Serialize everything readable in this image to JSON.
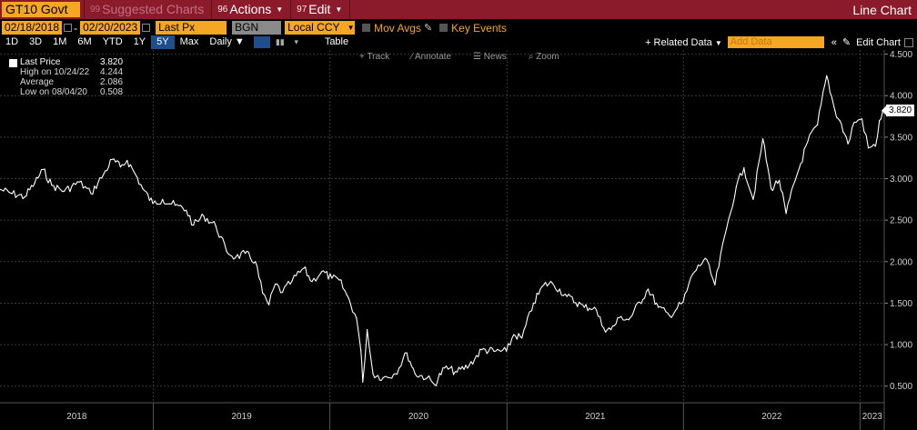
{
  "toolbar": {
    "ticker": "GT10 Govt",
    "suggested_num": "99",
    "suggested": "Suggested Charts",
    "actions_num": "96",
    "actions": "Actions",
    "edit_num": "97",
    "edit": "Edit",
    "title": "Line Chart"
  },
  "controls": {
    "start_date": "02/18/2018",
    "date_sep": "-",
    "end_date": "02/20/2023",
    "field": "Last Px",
    "source": "BGN",
    "currency": "Local CCY",
    "mov_avgs": "Mov Avgs",
    "key_events": "Key Events"
  },
  "ranges": [
    "1D",
    "3D",
    "1M",
    "6M",
    "YTD",
    "1Y",
    "5Y",
    "Max"
  ],
  "active_range": "5Y",
  "periodicity": "Daily",
  "table_label": "Table",
  "related_data": "+ Related Data",
  "add_data_placeholder": "Add Data",
  "edit_chart": "Edit Chart",
  "hover_tools": [
    "Track",
    "Annotate",
    "News",
    "Zoom"
  ],
  "legend": [
    {
      "label": "Last Price",
      "value": "3.820"
    },
    {
      "label": "High on 10/24/22",
      "value": "4.244"
    },
    {
      "label": "Average",
      "value": "2.086"
    },
    {
      "label": "Low on 08/04/20",
      "value": "0.508"
    }
  ],
  "colors": {
    "bar": "#8b1a2b",
    "accent": "#f5a623",
    "line": "#ffffff",
    "active": "#1f4e8c"
  },
  "chart_data": {
    "type": "line",
    "x_start": "2018-02-18",
    "x_end": "2023-02-20",
    "ylim": [
      0.3,
      4.55
    ],
    "y_ticks": [
      "4.500",
      "4.000",
      "3.500",
      "3.000",
      "2.500",
      "2.000",
      "1.500",
      "1.000",
      "0.500"
    ],
    "x_labels": [
      "2018",
      "2019",
      "2020",
      "2021",
      "2022",
      "2023"
    ],
    "last_value": "3.820",
    "series": [
      {
        "values": [
          [
            "2018-02-18",
            2.87
          ],
          [
            "2018-03-15",
            2.82
          ],
          [
            "2018-04-10",
            2.78
          ],
          [
            "2018-05-01",
            2.95
          ],
          [
            "2018-05-18",
            3.11
          ],
          [
            "2018-06-05",
            2.92
          ],
          [
            "2018-07-01",
            2.85
          ],
          [
            "2018-08-01",
            2.96
          ],
          [
            "2018-08-25",
            2.82
          ],
          [
            "2018-09-20",
            3.05
          ],
          [
            "2018-10-08",
            3.23
          ],
          [
            "2018-10-25",
            3.14
          ],
          [
            "2018-11-08",
            3.22
          ],
          [
            "2018-11-25",
            3.05
          ],
          [
            "2018-12-10",
            2.88
          ],
          [
            "2018-12-31",
            2.7
          ],
          [
            "2019-01-20",
            2.75
          ],
          [
            "2019-02-15",
            2.68
          ],
          [
            "2019-03-10",
            2.62
          ],
          [
            "2019-03-25",
            2.44
          ],
          [
            "2019-04-15",
            2.55
          ],
          [
            "2019-05-10",
            2.43
          ],
          [
            "2019-06-01",
            2.13
          ],
          [
            "2019-06-20",
            2.05
          ],
          [
            "2019-07-10",
            2.1
          ],
          [
            "2019-07-31",
            2.0
          ],
          [
            "2019-08-15",
            1.62
          ],
          [
            "2019-08-28",
            1.48
          ],
          [
            "2019-09-10",
            1.73
          ],
          [
            "2019-09-25",
            1.63
          ],
          [
            "2019-10-15",
            1.77
          ],
          [
            "2019-11-08",
            1.92
          ],
          [
            "2019-11-25",
            1.76
          ],
          [
            "2019-12-15",
            1.88
          ],
          [
            "2020-01-05",
            1.8
          ],
          [
            "2020-01-20",
            1.78
          ],
          [
            "2020-02-05",
            1.6
          ],
          [
            "2020-02-25",
            1.32
          ],
          [
            "2020-03-05",
            0.93
          ],
          [
            "2020-03-09",
            0.55
          ],
          [
            "2020-03-18",
            1.18
          ],
          [
            "2020-03-30",
            0.65
          ],
          [
            "2020-04-20",
            0.6
          ],
          [
            "2020-05-15",
            0.65
          ],
          [
            "2020-06-08",
            0.9
          ],
          [
            "2020-06-25",
            0.65
          ],
          [
            "2020-07-20",
            0.6
          ],
          [
            "2020-08-04",
            0.52
          ],
          [
            "2020-08-25",
            0.72
          ],
          [
            "2020-09-20",
            0.67
          ],
          [
            "2020-10-15",
            0.75
          ],
          [
            "2020-11-10",
            0.94
          ],
          [
            "2020-12-05",
            0.92
          ],
          [
            "2020-12-31",
            0.92
          ],
          [
            "2021-01-15",
            1.12
          ],
          [
            "2021-02-01",
            1.08
          ],
          [
            "2021-02-25",
            1.5
          ],
          [
            "2021-03-18",
            1.72
          ],
          [
            "2021-04-05",
            1.74
          ],
          [
            "2021-05-05",
            1.58
          ],
          [
            "2021-06-10",
            1.45
          ],
          [
            "2021-07-01",
            1.45
          ],
          [
            "2021-07-20",
            1.2
          ],
          [
            "2021-08-04",
            1.18
          ],
          [
            "2021-08-25",
            1.34
          ],
          [
            "2021-09-10",
            1.3
          ],
          [
            "2021-10-20",
            1.67
          ],
          [
            "2021-11-10",
            1.45
          ],
          [
            "2021-12-03",
            1.35
          ],
          [
            "2021-12-31",
            1.51
          ],
          [
            "2022-01-20",
            1.85
          ],
          [
            "2022-02-15",
            2.04
          ],
          [
            "2022-03-07",
            1.72
          ],
          [
            "2022-03-31",
            2.4
          ],
          [
            "2022-04-20",
            2.9
          ],
          [
            "2022-05-06",
            3.13
          ],
          [
            "2022-05-25",
            2.75
          ],
          [
            "2022-06-14",
            3.48
          ],
          [
            "2022-07-01",
            2.88
          ],
          [
            "2022-07-18",
            2.98
          ],
          [
            "2022-08-01",
            2.58
          ],
          [
            "2022-08-20",
            2.98
          ],
          [
            "2022-09-15",
            3.45
          ],
          [
            "2022-10-05",
            3.65
          ],
          [
            "2022-10-24",
            4.24
          ],
          [
            "2022-11-10",
            3.82
          ],
          [
            "2022-11-20",
            3.7
          ],
          [
            "2022-12-07",
            3.42
          ],
          [
            "2022-12-20",
            3.68
          ],
          [
            "2023-01-05",
            3.72
          ],
          [
            "2023-01-18",
            3.37
          ],
          [
            "2023-02-02",
            3.39
          ],
          [
            "2023-02-10",
            3.7
          ],
          [
            "2023-02-20",
            3.82
          ]
        ]
      }
    ]
  }
}
